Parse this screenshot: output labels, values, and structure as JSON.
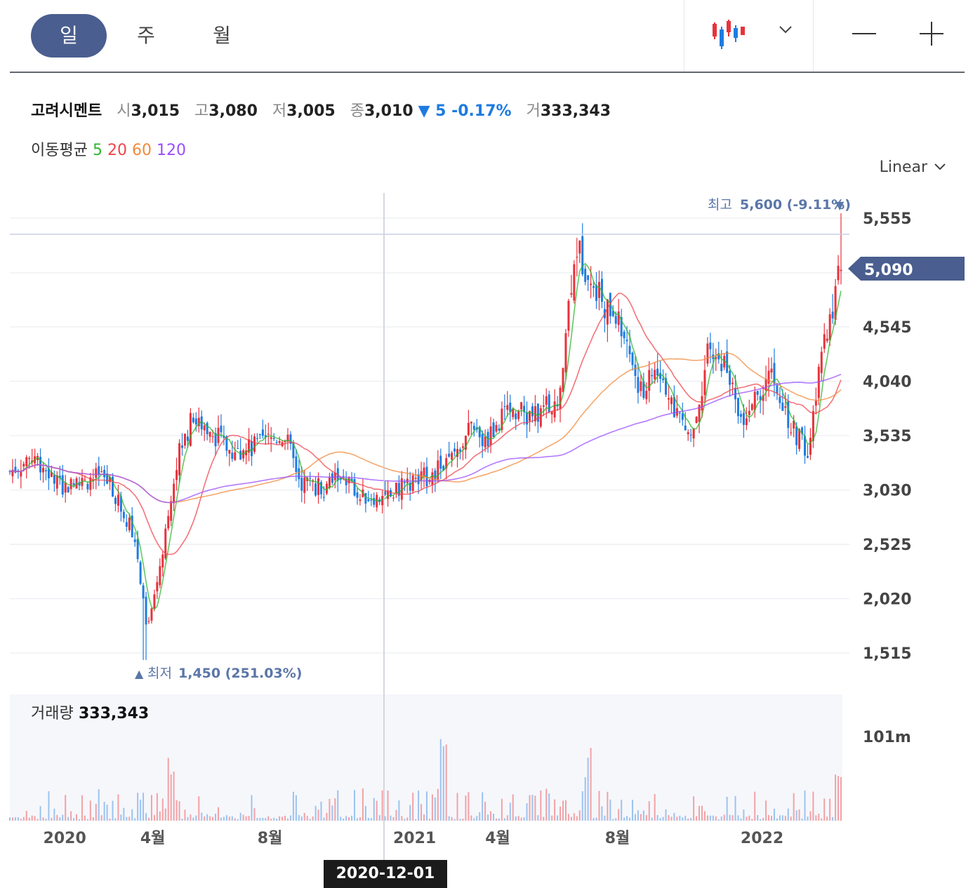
{
  "toolbar": {
    "periods": [
      {
        "label": "일",
        "active": true
      },
      {
        "label": "주",
        "active": false
      },
      {
        "label": "월",
        "active": false
      }
    ],
    "chart_type_icon": "candlestick-icon",
    "dropdown_icon": "chevron-down-icon",
    "zoom_out_icon": "minus-icon",
    "zoom_in_icon": "plus-icon"
  },
  "stock": {
    "name": "고려시멘트",
    "open_label": "시",
    "open": "3,015",
    "high_label": "고",
    "high": "3,080",
    "low_label": "저",
    "low": "3,005",
    "close_label": "종",
    "close": "3,010",
    "change": "▼ 5 -0.17%",
    "volume_label": "거",
    "volume": "333,343"
  },
  "moving_average": {
    "label": "이동평균",
    "periods": [
      {
        "label": "5",
        "color": "#2fb52f"
      },
      {
        "label": "20",
        "color": "#f0444c"
      },
      {
        "label": "60",
        "color": "#f28a3b"
      },
      {
        "label": "120",
        "color": "#9b4dff"
      }
    ]
  },
  "scale": {
    "label": "Linear"
  },
  "colors": {
    "up": "#e8323c",
    "down": "#1f7ce0",
    "current_price_bg": "#4a5e8f",
    "annotation": "#5b76a8"
  },
  "chart_data": {
    "type": "candlestick",
    "y_ticks": [
      "5,555",
      "4,545",
      "4,040",
      "3,535",
      "3,030",
      "2,525",
      "2,020",
      "1,515"
    ],
    "ylim": [
      1350,
      5700
    ],
    "current_price": "5,090",
    "high_annotation": {
      "label": "최고",
      "value": "5,600 (-9.11%)",
      "price": 5600
    },
    "low_annotation": {
      "label": "최저",
      "value": "1,450 (251.03%)",
      "price": 1450
    },
    "x_labels": [
      "2020",
      "4월",
      "8월",
      "2021",
      "4월",
      "8월",
      "2022"
    ],
    "crosshair_date": "2020-12-01",
    "close_trend": [
      {
        "x": 0,
        "y": 3200
      },
      {
        "x": 0.03,
        "y": 3350
      },
      {
        "x": 0.06,
        "y": 3050
      },
      {
        "x": 0.09,
        "y": 3100
      },
      {
        "x": 0.11,
        "y": 3180
      },
      {
        "x": 0.13,
        "y": 2950
      },
      {
        "x": 0.15,
        "y": 2600
      },
      {
        "x": 0.165,
        "y": 1700
      },
      {
        "x": 0.18,
        "y": 2300
      },
      {
        "x": 0.2,
        "y": 3300
      },
      {
        "x": 0.22,
        "y": 3700
      },
      {
        "x": 0.24,
        "y": 3600
      },
      {
        "x": 0.27,
        "y": 3350
      },
      {
        "x": 0.3,
        "y": 3450
      },
      {
        "x": 0.33,
        "y": 3550
      },
      {
        "x": 0.35,
        "y": 3100
      },
      {
        "x": 0.38,
        "y": 3050
      },
      {
        "x": 0.4,
        "y": 3200
      },
      {
        "x": 0.42,
        "y": 2950
      },
      {
        "x": 0.46,
        "y": 3000
      },
      {
        "x": 0.48,
        "y": 3100
      },
      {
        "x": 0.5,
        "y": 3150
      },
      {
        "x": 0.53,
        "y": 3300
      },
      {
        "x": 0.55,
        "y": 3600
      },
      {
        "x": 0.57,
        "y": 3450
      },
      {
        "x": 0.6,
        "y": 3800
      },
      {
        "x": 0.63,
        "y": 3700
      },
      {
        "x": 0.66,
        "y": 3900
      },
      {
        "x": 0.68,
        "y": 5300
      },
      {
        "x": 0.7,
        "y": 5000
      },
      {
        "x": 0.72,
        "y": 4700
      },
      {
        "x": 0.74,
        "y": 4500
      },
      {
        "x": 0.76,
        "y": 3900
      },
      {
        "x": 0.78,
        "y": 4200
      },
      {
        "x": 0.8,
        "y": 3800
      },
      {
        "x": 0.82,
        "y": 3500
      },
      {
        "x": 0.84,
        "y": 4300
      },
      {
        "x": 0.86,
        "y": 4200
      },
      {
        "x": 0.88,
        "y": 3700
      },
      {
        "x": 0.9,
        "y": 3900
      },
      {
        "x": 0.92,
        "y": 4100
      },
      {
        "x": 0.94,
        "y": 3600
      },
      {
        "x": 0.96,
        "y": 3400
      },
      {
        "x": 0.98,
        "y": 4400
      },
      {
        "x": 1.0,
        "y": 5090
      }
    ],
    "volume": {
      "label": "거래량",
      "value": "333,343",
      "max_tick": "101m"
    }
  }
}
